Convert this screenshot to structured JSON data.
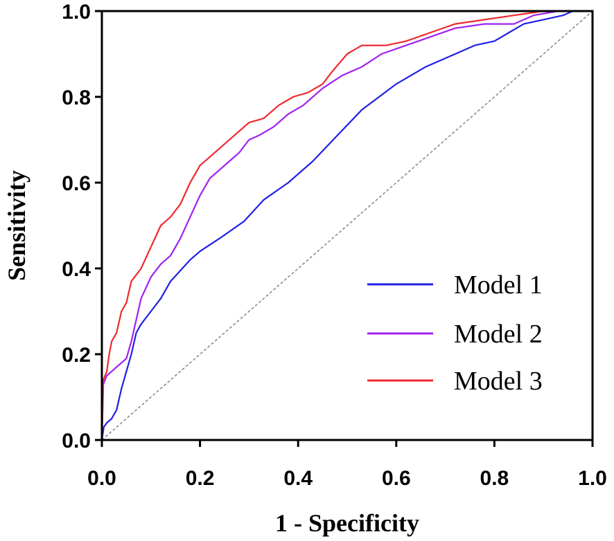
{
  "chart_data": {
    "type": "line",
    "title": "",
    "xlabel": "1 - Specificity",
    "ylabel": "Sensitivity",
    "xlim": [
      0,
      1
    ],
    "ylim": [
      0,
      1
    ],
    "x_ticks": [
      "0.0",
      "0.2",
      "0.4",
      "0.6",
      "0.8",
      "1.0"
    ],
    "y_ticks": [
      "0.0",
      "0.2",
      "0.4",
      "0.6",
      "0.8",
      "1.0"
    ],
    "grid": false,
    "legend_position": "bottom-right",
    "reference_line": {
      "style": "dashed",
      "color": "#8a8a8a",
      "from": [
        0,
        0
      ],
      "to": [
        1,
        1
      ]
    },
    "series": [
      {
        "name": "Model 1",
        "color": "#1f1fe6",
        "points": [
          [
            0,
            0
          ],
          [
            0.004,
            0.03
          ],
          [
            0.01,
            0.04
          ],
          [
            0.02,
            0.05
          ],
          [
            0.03,
            0.07
          ],
          [
            0.04,
            0.12
          ],
          [
            0.05,
            0.16
          ],
          [
            0.06,
            0.2
          ],
          [
            0.07,
            0.25
          ],
          [
            0.08,
            0.27
          ],
          [
            0.1,
            0.3
          ],
          [
            0.12,
            0.33
          ],
          [
            0.14,
            0.37
          ],
          [
            0.18,
            0.42
          ],
          [
            0.2,
            0.44
          ],
          [
            0.24,
            0.47
          ],
          [
            0.29,
            0.51
          ],
          [
            0.33,
            0.56
          ],
          [
            0.38,
            0.6
          ],
          [
            0.43,
            0.65
          ],
          [
            0.48,
            0.71
          ],
          [
            0.53,
            0.77
          ],
          [
            0.6,
            0.83
          ],
          [
            0.66,
            0.87
          ],
          [
            0.7,
            0.89
          ],
          [
            0.76,
            0.92
          ],
          [
            0.8,
            0.93
          ],
          [
            0.83,
            0.95
          ],
          [
            0.86,
            0.97
          ],
          [
            0.9,
            0.98
          ],
          [
            0.94,
            0.99
          ],
          [
            0.96,
            1
          ],
          [
            1,
            1
          ]
        ]
      },
      {
        "name": "Model 2",
        "color": "#a020f0",
        "points": [
          [
            0,
            0
          ],
          [
            0.003,
            0.13
          ],
          [
            0.01,
            0.15
          ],
          [
            0.02,
            0.16
          ],
          [
            0.03,
            0.17
          ],
          [
            0.04,
            0.18
          ],
          [
            0.05,
            0.19
          ],
          [
            0.06,
            0.23
          ],
          [
            0.08,
            0.33
          ],
          [
            0.1,
            0.38
          ],
          [
            0.12,
            0.41
          ],
          [
            0.14,
            0.43
          ],
          [
            0.16,
            0.47
          ],
          [
            0.18,
            0.52
          ],
          [
            0.2,
            0.57
          ],
          [
            0.22,
            0.61
          ],
          [
            0.24,
            0.63
          ],
          [
            0.26,
            0.65
          ],
          [
            0.28,
            0.67
          ],
          [
            0.3,
            0.7
          ],
          [
            0.32,
            0.71
          ],
          [
            0.35,
            0.73
          ],
          [
            0.38,
            0.76
          ],
          [
            0.41,
            0.78
          ],
          [
            0.45,
            0.82
          ],
          [
            0.49,
            0.85
          ],
          [
            0.53,
            0.87
          ],
          [
            0.57,
            0.9
          ],
          [
            0.62,
            0.92
          ],
          [
            0.67,
            0.94
          ],
          [
            0.72,
            0.96
          ],
          [
            0.78,
            0.97
          ],
          [
            0.84,
            0.97
          ],
          [
            0.88,
            0.99
          ],
          [
            0.93,
            1
          ],
          [
            1,
            1
          ]
        ]
      },
      {
        "name": "Model 3",
        "color": "#f0282d",
        "points": [
          [
            0,
            0
          ],
          [
            0.003,
            0.14
          ],
          [
            0.01,
            0.16
          ],
          [
            0.015,
            0.2
          ],
          [
            0.02,
            0.23
          ],
          [
            0.03,
            0.25
          ],
          [
            0.04,
            0.3
          ],
          [
            0.05,
            0.32
          ],
          [
            0.06,
            0.37
          ],
          [
            0.08,
            0.4
          ],
          [
            0.1,
            0.45
          ],
          [
            0.12,
            0.5
          ],
          [
            0.14,
            0.52
          ],
          [
            0.16,
            0.55
          ],
          [
            0.18,
            0.6
          ],
          [
            0.2,
            0.64
          ],
          [
            0.22,
            0.66
          ],
          [
            0.25,
            0.69
          ],
          [
            0.28,
            0.72
          ],
          [
            0.3,
            0.74
          ],
          [
            0.33,
            0.75
          ],
          [
            0.36,
            0.78
          ],
          [
            0.39,
            0.8
          ],
          [
            0.42,
            0.81
          ],
          [
            0.45,
            0.83
          ],
          [
            0.47,
            0.86
          ],
          [
            0.5,
            0.9
          ],
          [
            0.53,
            0.92
          ],
          [
            0.58,
            0.92
          ],
          [
            0.62,
            0.93
          ],
          [
            0.67,
            0.95
          ],
          [
            0.72,
            0.97
          ],
          [
            0.78,
            0.98
          ],
          [
            0.84,
            0.99
          ],
          [
            0.9,
            1
          ],
          [
            1,
            1
          ]
        ]
      }
    ]
  }
}
